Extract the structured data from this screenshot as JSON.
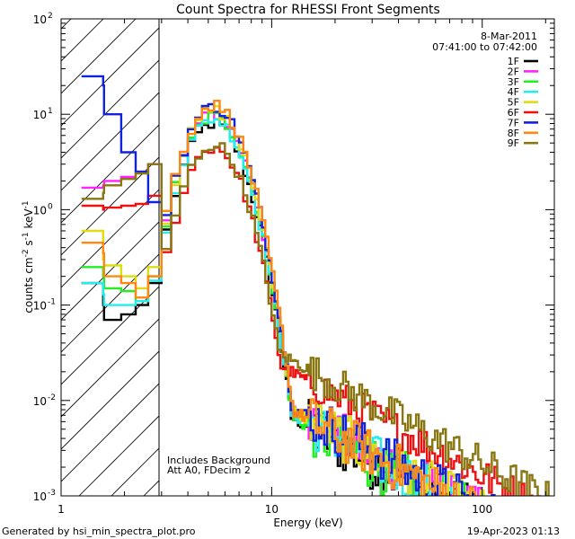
{
  "chart_data": {
    "type": "line",
    "title": "Count Spectra for RHESSI Front Segments",
    "xlabel": "Energy (keV)",
    "ylabel": "counts cm^-2 s^-1 keV^-1",
    "xscale": "log",
    "yscale": "log",
    "xlim": [
      1,
      220
    ],
    "ylim": [
      0.001,
      100
    ],
    "x_ticks": [
      {
        "value": 1,
        "label": "1"
      },
      {
        "value": 10,
        "label": "10"
      },
      {
        "value": 100,
        "label": "100"
      }
    ],
    "y_ticks": [
      {
        "value": 100,
        "mant": "10",
        "exp": "2"
      },
      {
        "value": 10,
        "mant": "10",
        "exp": "1"
      },
      {
        "value": 1,
        "mant": "10",
        "exp": "0"
      },
      {
        "value": 0.1,
        "mant": "10",
        "exp": "-1"
      },
      {
        "value": 0.01,
        "mant": "10",
        "exp": "-2"
      },
      {
        "value": 0.001,
        "mant": "10",
        "exp": "-3"
      }
    ],
    "date": "8-Mar-2011",
    "time_range": "07:41:00 to 07:42:00",
    "shaded_region": {
      "from": 1,
      "to": 3
    },
    "annotation_line1": "Includes Background",
    "annotation_line2": "Att A0, FDecim 2",
    "footer_left": "Generated by hsi_min_spectra_plot.pro",
    "footer_right": "19-Apr-2023 01:13",
    "peak_energy": 5.3,
    "series": [
      {
        "name": "1F",
        "color": "#000000",
        "low": [
          0.17,
          0.1,
          0.07,
          0.08,
          0.1,
          0.12,
          0.17
        ],
        "peak": 8,
        "noise": 0.7,
        "tail": 0.001
      },
      {
        "name": "2F",
        "color": "#ff22ff",
        "low": [
          1.7,
          1.8,
          2.0,
          2.2,
          2.5,
          2.8,
          3.0
        ],
        "peak": 10,
        "noise": 0.6,
        "tail": 0.0012
      },
      {
        "name": "3F",
        "color": "#22ee22",
        "low": [
          0.25,
          0.2,
          0.15,
          0.14,
          0.11,
          0.16,
          0.2
        ],
        "peak": 9.5,
        "noise": 0.7,
        "tail": 0.001
      },
      {
        "name": "4F",
        "color": "#22eeee",
        "low": [
          0.17,
          0.13,
          0.1,
          0.1,
          0.11,
          0.14,
          0.18
        ],
        "peak": 9,
        "noise": 0.6,
        "tail": 0.0011
      },
      {
        "name": "5F",
        "color": "#dddd11",
        "low": [
          0.6,
          0.3,
          0.26,
          0.2,
          0.15,
          0.2,
          0.25
        ],
        "peak": 11,
        "noise": 0.6,
        "tail": 0.0012
      },
      {
        "name": "6F",
        "color": "#ee1111",
        "low": [
          1.1,
          1.0,
          1.05,
          1.1,
          1.15,
          1.25,
          1.4
        ],
        "peak": 4.5,
        "noise": 0.45,
        "tail": 0.003
      },
      {
        "name": "7F",
        "color": "#1122dd",
        "low": [
          25,
          20,
          10,
          4,
          2.5,
          1.5,
          1.2
        ],
        "peak": 12,
        "noise": 0.6,
        "tail": 0.0013
      },
      {
        "name": "8F",
        "color": "#ff8811",
        "low": [
          0.45,
          0.35,
          0.2,
          0.17,
          0.12,
          0.16,
          0.2
        ],
        "peak": 12.5,
        "noise": 0.6,
        "tail": 0.0012
      },
      {
        "name": "9F",
        "color": "#887711",
        "low": [
          1.3,
          1.5,
          1.8,
          2.1,
          2.4,
          2.7,
          3.0
        ],
        "peak": 4.8,
        "noise": 0.45,
        "tail": 0.004
      }
    ]
  }
}
